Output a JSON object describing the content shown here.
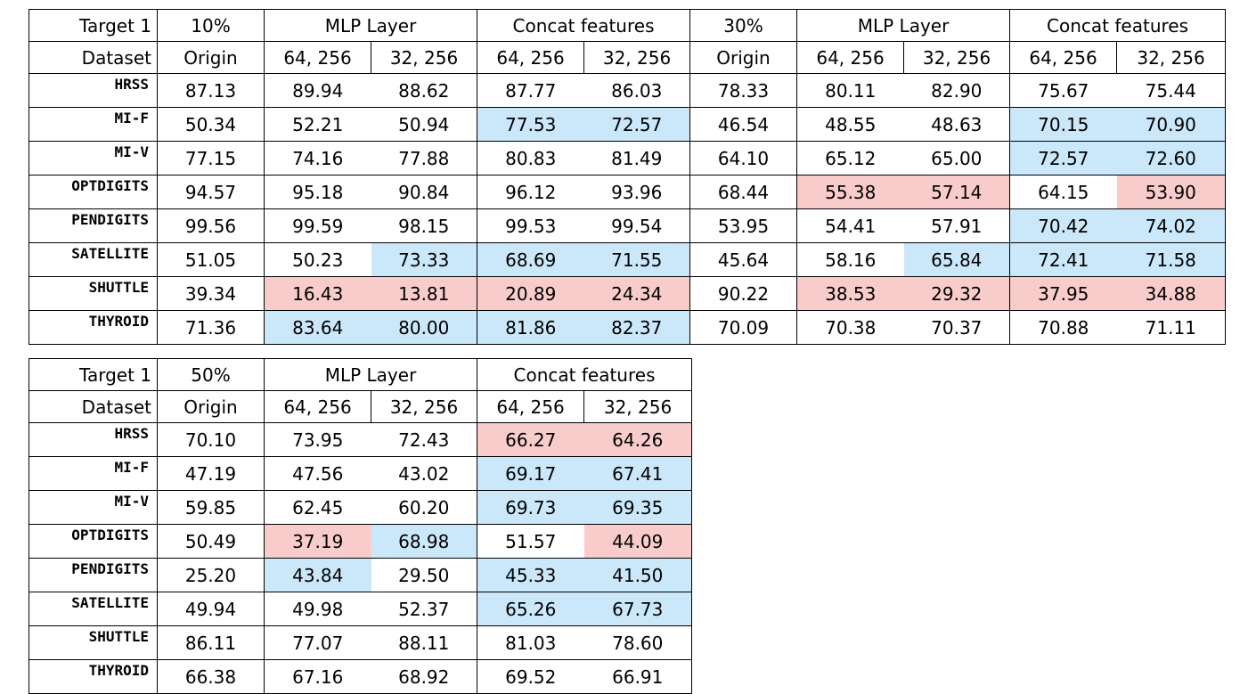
{
  "colors": {
    "blue_highlight": "#cbe8fa",
    "pink_highlight": "#f9cccc"
  },
  "top_table": {
    "header1": {
      "label": "Target 1",
      "groups": [
        "10%",
        "MLP Layer",
        "Concat features",
        "30%",
        "MLP Layer",
        "Concat features"
      ]
    },
    "header2": {
      "label": "Dataset",
      "cols": [
        "Origin",
        "64, 256",
        "32, 256",
        "64, 256",
        "32, 256",
        "Origin",
        "64, 256",
        "32, 256",
        "64, 256",
        "32, 256"
      ]
    },
    "rows": [
      {
        "name": "HRSS",
        "values": [
          "87.13",
          "89.94",
          "88.62",
          "87.77",
          "86.03",
          "78.33",
          "80.11",
          "82.90",
          "75.67",
          "75.44"
        ],
        "hl": [
          "",
          "",
          "",
          "",
          "",
          "",
          "",
          "",
          "",
          ""
        ]
      },
      {
        "name": "MI-F",
        "values": [
          "50.34",
          "52.21",
          "50.94",
          "77.53",
          "72.57",
          "46.54",
          "48.55",
          "48.63",
          "70.15",
          "70.90"
        ],
        "hl": [
          "",
          "",
          "",
          "b",
          "b",
          "",
          "",
          "",
          "b",
          "b"
        ]
      },
      {
        "name": "MI-V",
        "values": [
          "77.15",
          "74.16",
          "77.88",
          "80.83",
          "81.49",
          "64.10",
          "65.12",
          "65.00",
          "72.57",
          "72.60"
        ],
        "hl": [
          "",
          "",
          "",
          "",
          "",
          "",
          "",
          "",
          "b",
          "b"
        ]
      },
      {
        "name": "OPTDIGITS",
        "values": [
          "94.57",
          "95.18",
          "90.84",
          "96.12",
          "93.96",
          "68.44",
          "55.38",
          "57.14",
          "64.15",
          "53.90"
        ],
        "hl": [
          "",
          "",
          "",
          "",
          "",
          "",
          "p",
          "p",
          "",
          "p"
        ]
      },
      {
        "name": "PENDIGITS",
        "values": [
          "99.56",
          "99.59",
          "98.15",
          "99.53",
          "99.54",
          "53.95",
          "54.41",
          "57.91",
          "70.42",
          "74.02"
        ],
        "hl": [
          "",
          "",
          "",
          "",
          "",
          "",
          "",
          "",
          "b",
          "b"
        ]
      },
      {
        "name": "SATELLITE",
        "values": [
          "51.05",
          "50.23",
          "73.33",
          "68.69",
          "71.55",
          "45.64",
          "58.16",
          "65.84",
          "72.41",
          "71.58"
        ],
        "hl": [
          "",
          "",
          "b",
          "b",
          "b",
          "",
          "",
          "b",
          "b",
          "b"
        ]
      },
      {
        "name": "SHUTTLE",
        "values": [
          "39.34",
          "16.43",
          "13.81",
          "20.89",
          "24.34",
          "90.22",
          "38.53",
          "29.32",
          "37.95",
          "34.88"
        ],
        "hl": [
          "",
          "p",
          "p",
          "p",
          "p",
          "",
          "p",
          "p",
          "p",
          "p"
        ]
      },
      {
        "name": "THYROID",
        "values": [
          "71.36",
          "83.64",
          "80.00",
          "81.86",
          "82.37",
          "70.09",
          "70.38",
          "70.37",
          "70.88",
          "71.11"
        ],
        "hl": [
          "",
          "b",
          "b",
          "b",
          "b",
          "",
          "",
          "",
          "",
          ""
        ]
      }
    ]
  },
  "bottom_table": {
    "header1": {
      "label": "Target 1",
      "groups": [
        "50%",
        "MLP Layer",
        "Concat features"
      ]
    },
    "header2": {
      "label": "Dataset",
      "cols": [
        "Origin",
        "64, 256",
        "32, 256",
        "64, 256",
        "32, 256"
      ]
    },
    "rows": [
      {
        "name": "HRSS",
        "values": [
          "70.10",
          "73.95",
          "72.43",
          "66.27",
          "64.26"
        ],
        "hl": [
          "",
          "",
          "",
          "p",
          "p"
        ]
      },
      {
        "name": "MI-F",
        "values": [
          "47.19",
          "47.56",
          "43.02",
          "69.17",
          "67.41"
        ],
        "hl": [
          "",
          "",
          "",
          "b",
          "b"
        ]
      },
      {
        "name": "MI-V",
        "values": [
          "59.85",
          "62.45",
          "60.20",
          "69.73",
          "69.35"
        ],
        "hl": [
          "",
          "",
          "",
          "b",
          "b"
        ]
      },
      {
        "name": "OPTDIGITS",
        "values": [
          "50.49",
          "37.19",
          "68.98",
          "51.57",
          "44.09"
        ],
        "hl": [
          "",
          "p",
          "b",
          "",
          "p"
        ]
      },
      {
        "name": "PENDIGITS",
        "values": [
          "25.20",
          "43.84",
          "29.50",
          "45.33",
          "41.50"
        ],
        "hl": [
          "",
          "b",
          "",
          "b",
          "b"
        ]
      },
      {
        "name": "SATELLITE",
        "values": [
          "49.94",
          "49.98",
          "52.37",
          "65.26",
          "67.73"
        ],
        "hl": [
          "",
          "",
          "",
          "b",
          "b"
        ]
      },
      {
        "name": "SHUTTLE",
        "values": [
          "86.11",
          "77.07",
          "88.11",
          "81.03",
          "78.60"
        ],
        "hl": [
          "",
          "",
          "",
          "",
          ""
        ]
      },
      {
        "name": "THYROID",
        "values": [
          "66.38",
          "67.16",
          "68.92",
          "69.52",
          "66.91"
        ],
        "hl": [
          "",
          "",
          "",
          "",
          ""
        ]
      }
    ]
  }
}
